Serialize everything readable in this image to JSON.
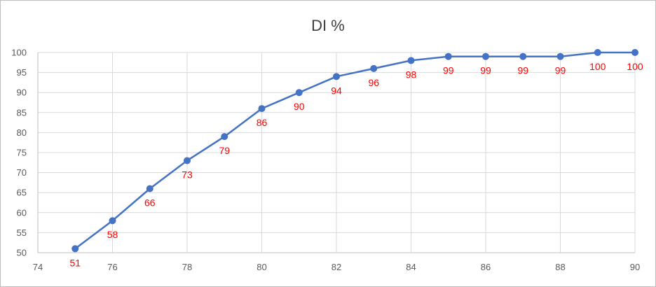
{
  "chart_data": {
    "type": "line",
    "title": "DI %",
    "xlabel": "",
    "ylabel": "",
    "xlim": [
      74,
      90
    ],
    "ylim": [
      50,
      100
    ],
    "x_ticks": [
      74,
      76,
      78,
      80,
      82,
      84,
      86,
      88,
      90
    ],
    "y_ticks": [
      50,
      55,
      60,
      65,
      70,
      75,
      80,
      85,
      90,
      95,
      100
    ],
    "grid": true,
    "legend": "none",
    "series": [
      {
        "color": "#4472c4",
        "x": [
          75,
          76,
          77,
          78,
          79,
          80,
          81,
          82,
          83,
          84,
          85,
          86,
          87,
          88,
          89,
          90
        ],
        "y": [
          51,
          58,
          66,
          73,
          79,
          86,
          90,
          94,
          96,
          98,
          99,
          99,
          99,
          99,
          100,
          100
        ]
      }
    ],
    "data_label_color": "#ff0000"
  }
}
